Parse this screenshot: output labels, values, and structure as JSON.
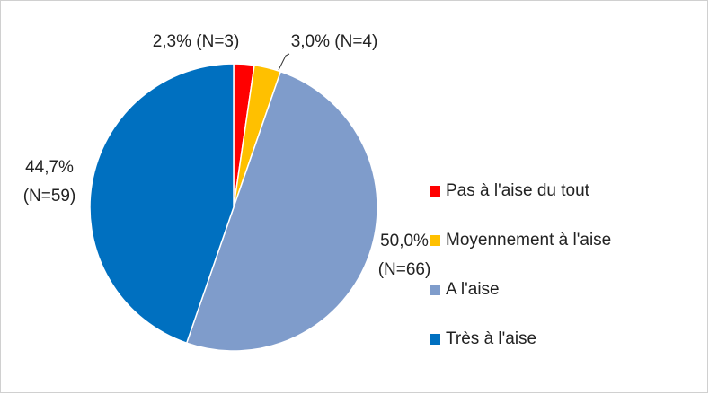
{
  "chart_data": {
    "type": "pie",
    "categories": [
      "Pas à l'aise du tout",
      "Moyennement à l'aise",
      "A l'aise",
      "Très à l'aise"
    ],
    "values": [
      2.3,
      3.0,
      50.0,
      44.7
    ],
    "value_labels": [
      "2,3% (N=3)",
      "3,0% (N=4)",
      "50,0% (N=66)",
      "44,7% (N=59)"
    ],
    "colors": [
      "#ff0000",
      "#ffc000",
      "#7f9ccb",
      "#0070c0"
    ],
    "legend": "right"
  }
}
